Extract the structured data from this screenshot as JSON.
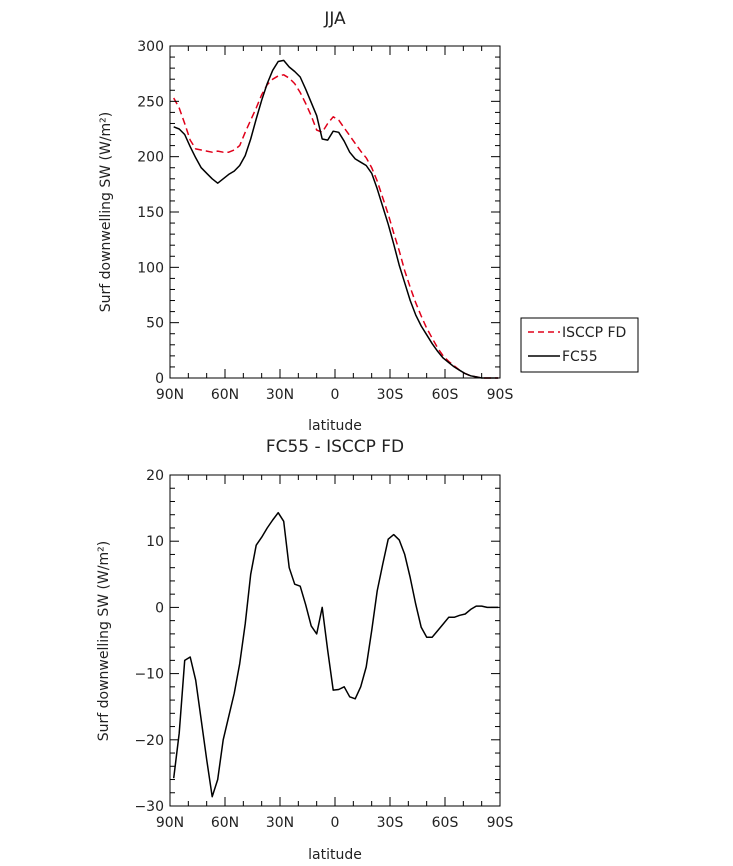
{
  "chart_data": [
    {
      "type": "line",
      "title": "JJA",
      "xlabel": "latitude",
      "ylabel": "Surf downwelling SW (W/m²)",
      "xlim": [
        90,
        -90
      ],
      "ylim": [
        0,
        300
      ],
      "x_ticks": [
        "90N",
        "60N",
        "30N",
        "0",
        "30S",
        "60S",
        "90S"
      ],
      "y_ticks": [
        "0",
        "50",
        "100",
        "150",
        "200",
        "250",
        "300"
      ],
      "legend": "right",
      "grid": false,
      "series": [
        {
          "name": "ISCCP FD",
          "color": "#e0001a",
          "dash": "dashed",
          "x": [
            88,
            85,
            82,
            79,
            76,
            73,
            70,
            67,
            64,
            61,
            58,
            55,
            52,
            49,
            46,
            43,
            40,
            37,
            34,
            31,
            28,
            25,
            22,
            19,
            16,
            13,
            10,
            7,
            4,
            1,
            -2,
            -5,
            -8,
            -11,
            -14,
            -17,
            -20,
            -23,
            -26,
            -29,
            -32,
            -35,
            -38,
            -41,
            -44,
            -47,
            -50,
            -53,
            -56,
            -59,
            -62,
            -65,
            -68,
            -71,
            -74,
            -77,
            -80,
            -83,
            -86,
            -89
          ],
          "values": [
            253,
            244,
            230,
            215,
            207,
            206,
            205,
            204,
            205,
            204,
            204,
            206,
            210,
            222,
            233,
            244,
            256,
            265,
            270,
            273,
            274,
            271,
            266,
            258,
            248,
            237,
            224,
            222,
            230,
            236,
            233,
            226,
            219,
            212,
            205,
            199,
            190,
            178,
            163,
            148,
            131,
            115,
            97,
            82,
            68,
            56,
            45,
            36,
            27,
            20,
            15,
            11,
            7,
            4,
            2,
            1,
            0,
            0,
            0,
            0
          ]
        },
        {
          "name": "FC55",
          "color": "#000000",
          "dash": "solid",
          "x": [
            88,
            85,
            82,
            79,
            76,
            73,
            70,
            67,
            64,
            61,
            58,
            55,
            52,
            49,
            46,
            43,
            40,
            37,
            34,
            31,
            28,
            25,
            22,
            19,
            16,
            13,
            10,
            7,
            4,
            1,
            -2,
            -5,
            -8,
            -11,
            -14,
            -17,
            -20,
            -23,
            -26,
            -29,
            -32,
            -35,
            -38,
            -41,
            -44,
            -47,
            -50,
            -53,
            -56,
            -59,
            -62,
            -65,
            -68,
            -71,
            -74,
            -77,
            -80,
            -83,
            -86,
            -89
          ],
          "values": [
            227,
            225,
            220,
            209,
            199,
            190,
            185,
            180,
            176,
            180,
            184,
            187,
            192,
            201,
            216,
            234,
            251,
            266,
            278,
            286,
            287,
            281,
            277,
            272,
            261,
            249,
            237,
            216,
            215,
            223,
            222,
            214,
            204,
            198,
            195,
            192,
            185,
            171,
            155,
            139,
            121,
            102,
            86,
            70,
            57,
            47,
            39,
            31,
            24,
            18,
            14,
            10,
            7,
            4,
            2,
            1,
            0,
            0,
            0,
            0
          ]
        }
      ]
    },
    {
      "type": "line",
      "title": "FC55 - ISCCP FD",
      "xlabel": "latitude",
      "ylabel": "Surf downwelling SW (W/m²)",
      "xlim": [
        90,
        -90
      ],
      "ylim": [
        -30,
        20
      ],
      "x_ticks": [
        "90N",
        "60N",
        "30N",
        "0",
        "30S",
        "60S",
        "90S"
      ],
      "y_ticks": [
        "-30",
        "-20",
        "-10",
        "0",
        "10",
        "20"
      ],
      "grid": false,
      "series": [
        {
          "name": "",
          "color": "#000000",
          "dash": "solid",
          "x": [
            88,
            85,
            82,
            79,
            76,
            73,
            70,
            67,
            64,
            61,
            58,
            55,
            52,
            49,
            46,
            43,
            40,
            37,
            34,
            31,
            28,
            25,
            22,
            19,
            16,
            13,
            10,
            7,
            4,
            1,
            -2,
            -5,
            -8,
            -11,
            -14,
            -17,
            -20,
            -23,
            -26,
            -29,
            -32,
            -35,
            -38,
            -41,
            -44,
            -47,
            -50,
            -53,
            -56,
            -59,
            -62,
            -65,
            -68,
            -71,
            -74,
            -77,
            -80,
            -83,
            -86,
            -89
          ],
          "values": [
            -25.8,
            -19.0,
            -8.0,
            -7.5,
            -11.0,
            -17.0,
            -23.0,
            -28.6,
            -26.0,
            -20.0,
            -16.5,
            -13.0,
            -8.5,
            -2.5,
            5.0,
            9.4,
            10.6,
            12.0,
            13.2,
            14.3,
            13.0,
            6.0,
            3.5,
            3.2,
            0.4,
            -2.8,
            -4.0,
            0.0,
            -6.5,
            -12.5,
            -12.4,
            -12.0,
            -13.5,
            -13.8,
            -12.0,
            -9.0,
            -3.5,
            2.5,
            6.5,
            10.3,
            11.0,
            10.2,
            8.0,
            4.5,
            0.5,
            -3.0,
            -4.5,
            -4.5,
            -3.5,
            -2.5,
            -1.5,
            -1.5,
            -1.2,
            -1.0,
            -0.3,
            0.2,
            0.2,
            0.0,
            0.0,
            0.0
          ]
        }
      ]
    }
  ]
}
